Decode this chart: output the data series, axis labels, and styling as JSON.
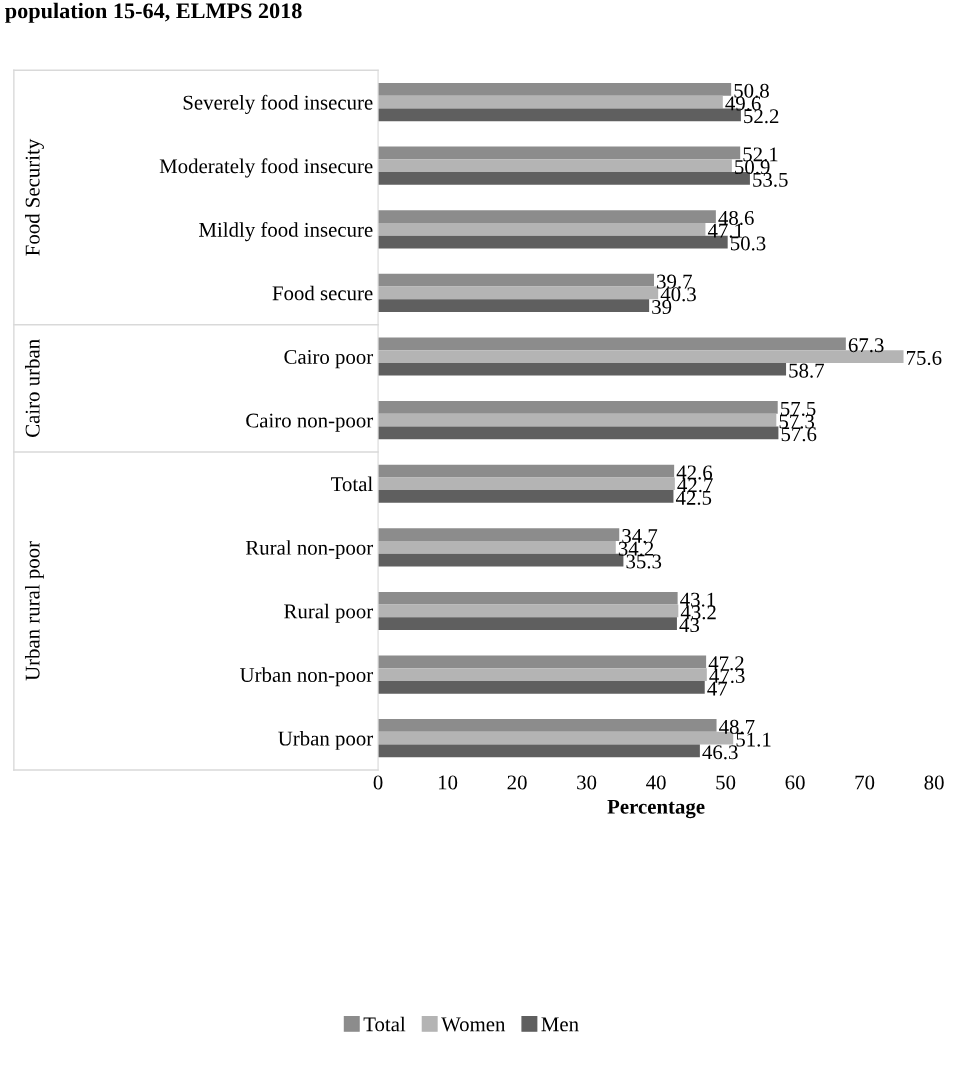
{
  "chart_data": {
    "type": "bar",
    "orientation": "horizontal",
    "title": "population 15-64, ELMPS 2018",
    "xlabel": "Percentage",
    "categories": [
      "Severely food insecure",
      "Moderately food insecure",
      "Mildly food insecure",
      "Food secure",
      "Cairo poor",
      "Cairo non-poor",
      "Total",
      "Rural non-poor",
      "Rural poor",
      "Urban non-poor",
      "Urban poor"
    ],
    "series": [
      {
        "name": "Total",
        "color": "#8c8c8c",
        "values": [
          50.8,
          52.1,
          48.6,
          39.7,
          67.3,
          57.5,
          42.6,
          34.7,
          43.1,
          47.2,
          48.7
        ]
      },
      {
        "name": "Women",
        "color": "#b4b4b4",
        "values": [
          49.6,
          50.9,
          47.1,
          40.3,
          75.6,
          57.3,
          42.7,
          34.2,
          43.2,
          47.3,
          51.1
        ]
      },
      {
        "name": "Men",
        "color": "#5f5f5f",
        "values": [
          52.2,
          53.5,
          50.3,
          39,
          58.7,
          57.6,
          42.5,
          35.3,
          43,
          47,
          46.3
        ]
      }
    ],
    "xlim": [
      0,
      80
    ],
    "xticks": [
      0,
      10,
      20,
      30,
      40,
      50,
      60,
      70,
      80
    ],
    "data_labels": true,
    "legend": "bottom",
    "grid": false,
    "annotations": [
      "Food Security",
      "Cairo urban",
      "Urban rural poor"
    ]
  }
}
